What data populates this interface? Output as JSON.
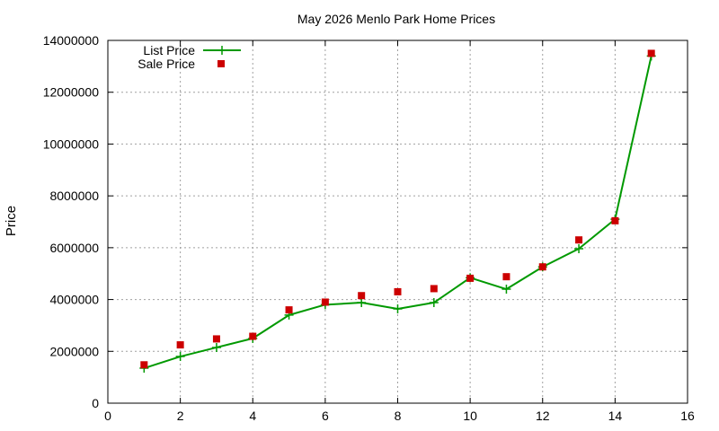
{
  "chart_data": {
    "type": "line",
    "title": "May 2026 Menlo Park Home Prices",
    "xlabel": "",
    "ylabel": "Price",
    "xlim": [
      0,
      16
    ],
    "ylim": [
      0,
      14000000
    ],
    "x_ticks": [
      0,
      2,
      4,
      6,
      8,
      10,
      12,
      14,
      16
    ],
    "y_ticks": [
      0,
      2000000,
      4000000,
      6000000,
      8000000,
      10000000,
      12000000,
      14000000
    ],
    "x_tick_labels": [
      "0",
      "2",
      "4",
      "6",
      "8",
      "10",
      "12",
      "14",
      "16"
    ],
    "y_tick_labels": [
      "0",
      "2000000",
      "4000000",
      "6000000",
      "8000000",
      "10000000",
      "12000000",
      "14000000"
    ],
    "grid": true,
    "legend_position": "top-left",
    "series": [
      {
        "name": "List Price",
        "style": "lines+points",
        "marker": "plus",
        "color": "#009900",
        "x": [
          1,
          2,
          3,
          4,
          5,
          6,
          7,
          8,
          9,
          10,
          11,
          12,
          13,
          14,
          15
        ],
        "values": [
          1350000,
          1800000,
          2150000,
          2500000,
          3400000,
          3800000,
          3880000,
          3640000,
          3880000,
          4840000,
          4400000,
          5260000,
          5960000,
          7100000,
          13400000
        ]
      },
      {
        "name": "Sale Price",
        "style": "points",
        "marker": "square",
        "color": "#cc0000",
        "x": [
          1,
          2,
          3,
          4,
          5,
          6,
          7,
          8,
          9,
          10,
          11,
          12,
          13,
          14,
          15
        ],
        "values": [
          1480000,
          2250000,
          2480000,
          2580000,
          3600000,
          3900000,
          4150000,
          4300000,
          4420000,
          4820000,
          4880000,
          5260000,
          6300000,
          7040000,
          13500000
        ]
      }
    ]
  }
}
